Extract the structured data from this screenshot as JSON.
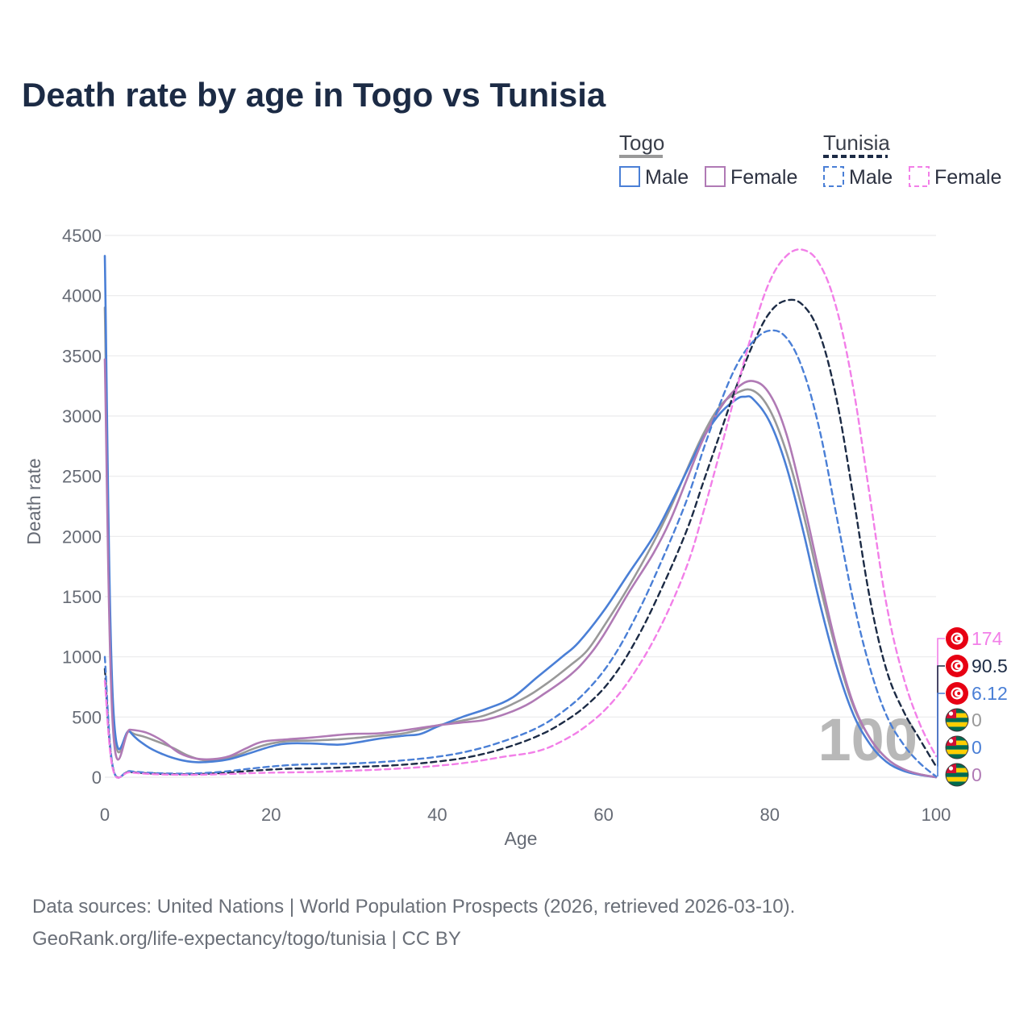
{
  "title": "Death rate by age in Togo vs Tunisia",
  "legend": {
    "groups": [
      {
        "name": "Togo",
        "dash": false,
        "color": "#999999",
        "items": [
          {
            "label": "Male",
            "color": "#4a7fd6",
            "dash": false
          },
          {
            "label": "Female",
            "color": "#b07ab5",
            "dash": false
          }
        ]
      },
      {
        "name": "Tunisia",
        "dash": true,
        "color": "#1c2b45",
        "items": [
          {
            "label": "Male",
            "color": "#4a7fd6",
            "dash": true
          },
          {
            "label": "Female",
            "color": "#f27fe8",
            "dash": true
          }
        ]
      }
    ]
  },
  "watermark": "100",
  "source_line1": "Data sources: United Nations | World Population Prospects (2026, retrieved 2026-03-10).",
  "source_line2": "GeoRank.org/life-expectancy/togo/tunisia | CC BY",
  "chart_data": {
    "type": "line",
    "title": "Death rate by age in Togo vs Tunisia",
    "xlabel": "Age",
    "ylabel": "Death rate",
    "xlim": [
      0,
      100
    ],
    "ylim": [
      0,
      4500
    ],
    "xticks": [
      0,
      20,
      40,
      60,
      80,
      100
    ],
    "yticks": [
      0,
      500,
      1000,
      1500,
      2000,
      2500,
      3000,
      3500,
      4000,
      4500
    ],
    "grid": true,
    "series": [
      {
        "name": "Togo Total",
        "color": "#999999",
        "dash": false,
        "width": 2.6,
        "points": [
          [
            0,
            3900
          ],
          [
            1,
            520
          ],
          [
            3,
            380
          ],
          [
            5,
            330
          ],
          [
            8,
            250
          ],
          [
            10,
            180
          ],
          [
            12,
            140
          ],
          [
            14,
            150
          ],
          [
            16,
            185
          ],
          [
            18,
            240
          ],
          [
            20,
            280
          ],
          [
            22,
            300
          ],
          [
            25,
            305
          ],
          [
            28,
            315
          ],
          [
            30,
            325
          ],
          [
            33,
            345
          ],
          [
            36,
            365
          ],
          [
            40,
            430
          ],
          [
            43,
            470
          ],
          [
            46,
            520
          ],
          [
            50,
            640
          ],
          [
            53,
            770
          ],
          [
            56,
            930
          ],
          [
            58,
            1050
          ],
          [
            60,
            1250
          ],
          [
            63,
            1580
          ],
          [
            66,
            1950
          ],
          [
            68,
            2230
          ],
          [
            70,
            2550
          ],
          [
            72,
            2850
          ],
          [
            74,
            3080
          ],
          [
            76,
            3190
          ],
          [
            78,
            3210
          ],
          [
            80,
            3050
          ],
          [
            82,
            2700
          ],
          [
            84,
            2200
          ],
          [
            86,
            1600
          ],
          [
            88,
            1050
          ],
          [
            90,
            600
          ],
          [
            92,
            330
          ],
          [
            94,
            160
          ],
          [
            96,
            70
          ],
          [
            98,
            25
          ],
          [
            100,
            0
          ]
        ]
      },
      {
        "name": "Togo Male",
        "color": "#4a7fd6",
        "dash": false,
        "width": 2.6,
        "points": [
          [
            0,
            4330
          ],
          [
            1,
            600
          ],
          [
            3,
            380
          ],
          [
            5,
            260
          ],
          [
            7,
            190
          ],
          [
            9,
            145
          ],
          [
            11,
            125
          ],
          [
            13,
            130
          ],
          [
            15,
            150
          ],
          [
            17,
            190
          ],
          [
            20,
            255
          ],
          [
            22,
            280
          ],
          [
            25,
            280
          ],
          [
            28,
            270
          ],
          [
            30,
            285
          ],
          [
            33,
            320
          ],
          [
            36,
            345
          ],
          [
            38,
            360
          ],
          [
            40,
            420
          ],
          [
            43,
            500
          ],
          [
            46,
            570
          ],
          [
            49,
            660
          ],
          [
            52,
            830
          ],
          [
            55,
            1000
          ],
          [
            57,
            1120
          ],
          [
            60,
            1380
          ],
          [
            63,
            1690
          ],
          [
            66,
            2000
          ],
          [
            68,
            2260
          ],
          [
            70,
            2540
          ],
          [
            72,
            2820
          ],
          [
            74,
            3020
          ],
          [
            76,
            3140
          ],
          [
            77,
            3160
          ],
          [
            78,
            3140
          ],
          [
            80,
            2950
          ],
          [
            82,
            2580
          ],
          [
            84,
            2050
          ],
          [
            86,
            1450
          ],
          [
            88,
            930
          ],
          [
            90,
            530
          ],
          [
            92,
            280
          ],
          [
            94,
            130
          ],
          [
            96,
            55
          ],
          [
            98,
            20
          ],
          [
            100,
            0
          ]
        ]
      },
      {
        "name": "Togo Female",
        "color": "#b07ab5",
        "dash": false,
        "width": 2.6,
        "points": [
          [
            0,
            3470
          ],
          [
            1,
            390
          ],
          [
            3,
            395
          ],
          [
            5,
            370
          ],
          [
            7,
            300
          ],
          [
            9,
            200
          ],
          [
            11,
            155
          ],
          [
            13,
            150
          ],
          [
            15,
            175
          ],
          [
            17,
            240
          ],
          [
            19,
            295
          ],
          [
            22,
            315
          ],
          [
            25,
            330
          ],
          [
            28,
            350
          ],
          [
            30,
            360
          ],
          [
            33,
            365
          ],
          [
            36,
            390
          ],
          [
            40,
            430
          ],
          [
            43,
            455
          ],
          [
            46,
            480
          ],
          [
            50,
            575
          ],
          [
            53,
            700
          ],
          [
            56,
            850
          ],
          [
            58,
            990
          ],
          [
            60,
            1180
          ],
          [
            63,
            1530
          ],
          [
            66,
            1860
          ],
          [
            68,
            2130
          ],
          [
            70,
            2470
          ],
          [
            72,
            2810
          ],
          [
            74,
            3060
          ],
          [
            76,
            3230
          ],
          [
            78,
            3290
          ],
          [
            80,
            3180
          ],
          [
            82,
            2850
          ],
          [
            84,
            2300
          ],
          [
            86,
            1680
          ],
          [
            88,
            1090
          ],
          [
            90,
            620
          ],
          [
            92,
            330
          ],
          [
            94,
            160
          ],
          [
            96,
            70
          ],
          [
            98,
            25
          ],
          [
            100,
            0
          ]
        ]
      },
      {
        "name": "Tunisia Total",
        "color": "#1c2b45",
        "dash": true,
        "width": 2.4,
        "points": [
          [
            0,
            900
          ],
          [
            1,
            70
          ],
          [
            3,
            45
          ],
          [
            6,
            30
          ],
          [
            10,
            25
          ],
          [
            14,
            35
          ],
          [
            18,
            55
          ],
          [
            22,
            70
          ],
          [
            26,
            75
          ],
          [
            30,
            85
          ],
          [
            35,
            100
          ],
          [
            40,
            130
          ],
          [
            44,
            170
          ],
          [
            48,
            240
          ],
          [
            52,
            340
          ],
          [
            55,
            450
          ],
          [
            58,
            600
          ],
          [
            61,
            820
          ],
          [
            64,
            1150
          ],
          [
            67,
            1570
          ],
          [
            70,
            2050
          ],
          [
            72,
            2450
          ],
          [
            74,
            2850
          ],
          [
            76,
            3250
          ],
          [
            78,
            3600
          ],
          [
            80,
            3860
          ],
          [
            82,
            3960
          ],
          [
            84,
            3920
          ],
          [
            86,
            3680
          ],
          [
            88,
            3150
          ],
          [
            90,
            2350
          ],
          [
            92,
            1500
          ],
          [
            94,
            900
          ],
          [
            96,
            560
          ],
          [
            98,
            320
          ],
          [
            100,
            90
          ]
        ]
      },
      {
        "name": "Tunisia Male",
        "color": "#4a7fd6",
        "dash": true,
        "width": 2.4,
        "points": [
          [
            0,
            1000
          ],
          [
            1,
            75
          ],
          [
            3,
            50
          ],
          [
            6,
            35
          ],
          [
            10,
            30
          ],
          [
            14,
            45
          ],
          [
            18,
            75
          ],
          [
            22,
            100
          ],
          [
            26,
            110
          ],
          [
            30,
            115
          ],
          [
            35,
            135
          ],
          [
            40,
            170
          ],
          [
            44,
            220
          ],
          [
            48,
            300
          ],
          [
            52,
            410
          ],
          [
            55,
            540
          ],
          [
            58,
            720
          ],
          [
            61,
            980
          ],
          [
            64,
            1350
          ],
          [
            67,
            1800
          ],
          [
            70,
            2300
          ],
          [
            72,
            2720
          ],
          [
            74,
            3100
          ],
          [
            76,
            3420
          ],
          [
            78,
            3620
          ],
          [
            80,
            3710
          ],
          [
            82,
            3650
          ],
          [
            84,
            3380
          ],
          [
            86,
            2880
          ],
          [
            88,
            2180
          ],
          [
            90,
            1480
          ],
          [
            92,
            920
          ],
          [
            94,
            520
          ],
          [
            96,
            280
          ],
          [
            98,
            120
          ],
          [
            100,
            6
          ]
        ]
      },
      {
        "name": "Tunisia Female",
        "color": "#f27fe8",
        "dash": true,
        "width": 2.4,
        "points": [
          [
            0,
            800
          ],
          [
            1,
            60
          ],
          [
            3,
            40
          ],
          [
            6,
            25
          ],
          [
            10,
            20
          ],
          [
            14,
            25
          ],
          [
            18,
            35
          ],
          [
            22,
            40
          ],
          [
            26,
            45
          ],
          [
            30,
            55
          ],
          [
            35,
            70
          ],
          [
            40,
            95
          ],
          [
            44,
            125
          ],
          [
            48,
            170
          ],
          [
            52,
            215
          ],
          [
            55,
            300
          ],
          [
            58,
            430
          ],
          [
            61,
            620
          ],
          [
            64,
            900
          ],
          [
            67,
            1270
          ],
          [
            70,
            1750
          ],
          [
            72,
            2200
          ],
          [
            74,
            2700
          ],
          [
            76,
            3220
          ],
          [
            78,
            3720
          ],
          [
            80,
            4120
          ],
          [
            82,
            4330
          ],
          [
            84,
            4380
          ],
          [
            86,
            4260
          ],
          [
            88,
            3900
          ],
          [
            90,
            3250
          ],
          [
            92,
            2350
          ],
          [
            94,
            1450
          ],
          [
            96,
            850
          ],
          [
            98,
            450
          ],
          [
            100,
            174
          ]
        ]
      }
    ],
    "end_labels": [
      {
        "value": "174",
        "color": "#f27fe8",
        "flag": "tunisia"
      },
      {
        "value": "90.5",
        "color": "#1c2b45",
        "flag": "tunisia"
      },
      {
        "value": "6.12",
        "color": "#4a7fd6",
        "flag": "tunisia"
      },
      {
        "value": "0",
        "color": "#999999",
        "flag": "togo"
      },
      {
        "value": "0",
        "color": "#4a7fd6",
        "flag": "togo"
      },
      {
        "value": "0",
        "color": "#b07ab5",
        "flag": "togo"
      }
    ]
  }
}
